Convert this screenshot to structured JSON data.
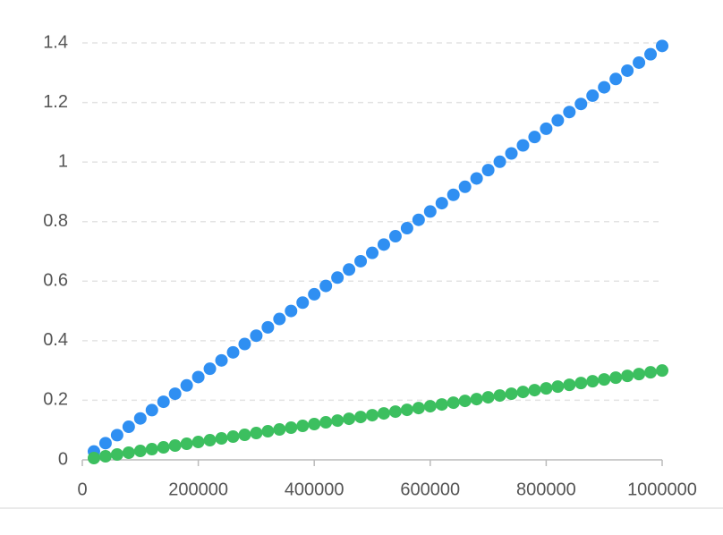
{
  "chart_data": {
    "type": "scatter",
    "x": [
      20000,
      40000,
      60000,
      80000,
      100000,
      120000,
      140000,
      160000,
      180000,
      200000,
      220000,
      240000,
      260000,
      280000,
      300000,
      320000,
      340000,
      360000,
      380000,
      400000,
      420000,
      440000,
      460000,
      480000,
      500000,
      520000,
      540000,
      560000,
      580000,
      600000,
      620000,
      640000,
      660000,
      680000,
      700000,
      720000,
      740000,
      760000,
      780000,
      800000,
      820000,
      840000,
      860000,
      880000,
      900000,
      920000,
      940000,
      960000,
      980000,
      1000000
    ],
    "series": [
      {
        "color": "#2f8ff2",
        "values": [
          0.028,
          0.056,
          0.083,
          0.111,
          0.139,
          0.167,
          0.195,
          0.222,
          0.25,
          0.278,
          0.306,
          0.334,
          0.361,
          0.389,
          0.417,
          0.445,
          0.473,
          0.5,
          0.528,
          0.556,
          0.584,
          0.612,
          0.639,
          0.667,
          0.695,
          0.723,
          0.751,
          0.778,
          0.806,
          0.834,
          0.862,
          0.89,
          0.917,
          0.945,
          0.973,
          1.001,
          1.029,
          1.056,
          1.084,
          1.112,
          1.14,
          1.168,
          1.195,
          1.223,
          1.251,
          1.279,
          1.307,
          1.334,
          1.362,
          1.39
        ]
      },
      {
        "color": "#3cbf5f",
        "values": [
          0.006,
          0.012,
          0.018,
          0.024,
          0.03,
          0.036,
          0.042,
          0.048,
          0.054,
          0.06,
          0.066,
          0.072,
          0.078,
          0.084,
          0.09,
          0.096,
          0.102,
          0.108,
          0.114,
          0.12,
          0.126,
          0.132,
          0.138,
          0.144,
          0.15,
          0.156,
          0.162,
          0.168,
          0.174,
          0.18,
          0.186,
          0.192,
          0.198,
          0.204,
          0.21,
          0.216,
          0.222,
          0.228,
          0.234,
          0.24,
          0.246,
          0.252,
          0.258,
          0.264,
          0.27,
          0.276,
          0.282,
          0.288,
          0.294,
          0.3
        ]
      }
    ],
    "xlim": [
      0,
      1000000
    ],
    "xticks": [
      0,
      200000,
      400000,
      600000,
      800000,
      1000000
    ],
    "ylim": [
      0,
      1.4
    ],
    "yticks": [
      0,
      0.2,
      0.4,
      0.6,
      0.8,
      1,
      1.2,
      1.4
    ],
    "grid": true
  }
}
